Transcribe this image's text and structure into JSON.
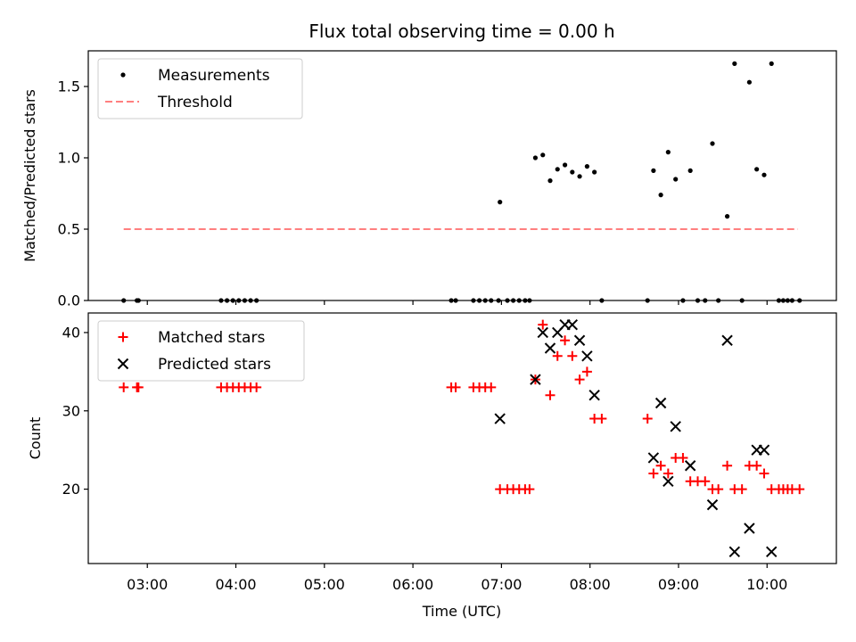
{
  "chart_data": {
    "type": "scatter",
    "title": "Flux total observing time = 0.00 h",
    "xlabel": "Time (UTC)",
    "x_ticks": [
      "03:00",
      "04:00",
      "05:00",
      "06:00",
      "07:00",
      "08:00",
      "09:00",
      "10:00"
    ],
    "x_tick_hours": [
      3,
      4,
      5,
      6,
      7,
      8,
      9,
      10
    ],
    "xlim": [
      2.333,
      10.783
    ],
    "panels": [
      {
        "ylabel": "Matched/Predicted stars",
        "ylim": [
          0,
          1.75
        ],
        "y_ticks": [
          0.0,
          0.5,
          1.0,
          1.5
        ],
        "y_tick_labels": [
          "0.0",
          "0.5",
          "1.0",
          "1.5"
        ],
        "legend": [
          "Measurements",
          "Threshold"
        ],
        "legend_position": "upper left",
        "threshold": {
          "name": "Threshold",
          "value": 0.5,
          "x_range": [
            2.733,
            10.35
          ],
          "color": "#ff7f7f"
        },
        "series": [
          {
            "name": "Measurements",
            "marker": "dot",
            "color": "#000000",
            "points": [
              [
                2.733,
                0
              ],
              [
                2.883,
                0
              ],
              [
                2.9,
                0
              ],
              [
                3.833,
                0
              ],
              [
                3.9,
                0
              ],
              [
                3.967,
                0
              ],
              [
                4.033,
                0
              ],
              [
                4.1,
                0
              ],
              [
                4.167,
                0
              ],
              [
                4.233,
                0
              ],
              [
                6.433,
                0
              ],
              [
                6.483,
                0
              ],
              [
                6.683,
                0
              ],
              [
                6.75,
                0
              ],
              [
                6.817,
                0
              ],
              [
                6.883,
                0
              ],
              [
                6.967,
                0
              ],
              [
                6.983,
                0.69
              ],
              [
                7.067,
                0
              ],
              [
                7.133,
                0
              ],
              [
                7.2,
                0
              ],
              [
                7.267,
                0
              ],
              [
                7.317,
                0
              ],
              [
                7.383,
                1.0
              ],
              [
                7.467,
                1.02
              ],
              [
                7.55,
                0.84
              ],
              [
                7.633,
                0.92
              ],
              [
                7.717,
                0.95
              ],
              [
                7.8,
                0.9
              ],
              [
                7.883,
                0.87
              ],
              [
                7.967,
                0.94
              ],
              [
                8.05,
                0.9
              ],
              [
                8.133,
                0
              ],
              [
                8.65,
                0
              ],
              [
                8.717,
                0.91
              ],
              [
                8.8,
                0.74
              ],
              [
                8.883,
                1.04
              ],
              [
                8.967,
                0.85
              ],
              [
                9.05,
                0
              ],
              [
                9.133,
                0.91
              ],
              [
                9.217,
                0
              ],
              [
                9.3,
                0
              ],
              [
                9.383,
                1.1
              ],
              [
                9.45,
                0
              ],
              [
                9.55,
                0.59
              ],
              [
                9.633,
                1.66
              ],
              [
                9.717,
                0
              ],
              [
                9.8,
                1.53
              ],
              [
                9.883,
                0.92
              ],
              [
                9.967,
                0.88
              ],
              [
                10.05,
                1.66
              ],
              [
                10.133,
                0
              ],
              [
                10.183,
                0
              ],
              [
                10.233,
                0
              ],
              [
                10.283,
                0
              ],
              [
                10.367,
                0
              ]
            ]
          }
        ]
      },
      {
        "ylabel": "Count",
        "ylim": [
          10.5,
          42.5
        ],
        "y_ticks": [
          20,
          30,
          40
        ],
        "y_tick_labels": [
          "20",
          "30",
          "40"
        ],
        "legend": [
          "Matched stars",
          "Predicted stars"
        ],
        "legend_position": "upper left",
        "series": [
          {
            "name": "Matched stars",
            "marker": "plus",
            "color": "#ff0000",
            "points": [
              [
                2.733,
                33
              ],
              [
                2.883,
                33
              ],
              [
                2.9,
                33
              ],
              [
                3.833,
                33
              ],
              [
                3.9,
                33
              ],
              [
                3.967,
                33
              ],
              [
                4.033,
                33
              ],
              [
                4.1,
                33
              ],
              [
                4.167,
                33
              ],
              [
                4.233,
                33
              ],
              [
                6.433,
                33
              ],
              [
                6.483,
                33
              ],
              [
                6.683,
                33
              ],
              [
                6.75,
                33
              ],
              [
                6.817,
                33
              ],
              [
                6.883,
                33
              ],
              [
                6.983,
                20
              ],
              [
                7.067,
                20
              ],
              [
                7.133,
                20
              ],
              [
                7.2,
                20
              ],
              [
                7.267,
                20
              ],
              [
                7.317,
                20
              ],
              [
                7.383,
                34
              ],
              [
                7.467,
                41
              ],
              [
                7.55,
                32
              ],
              [
                7.633,
                37
              ],
              [
                7.717,
                39
              ],
              [
                7.8,
                37
              ],
              [
                7.883,
                34
              ],
              [
                7.967,
                35
              ],
              [
                8.05,
                29
              ],
              [
                8.133,
                29
              ],
              [
                8.65,
                29
              ],
              [
                8.717,
                22
              ],
              [
                8.8,
                23
              ],
              [
                8.883,
                22
              ],
              [
                8.967,
                24
              ],
              [
                9.05,
                24
              ],
              [
                9.133,
                21
              ],
              [
                9.217,
                21
              ],
              [
                9.3,
                21
              ],
              [
                9.383,
                20
              ],
              [
                9.45,
                20
              ],
              [
                9.55,
                23
              ],
              [
                9.633,
                20
              ],
              [
                9.717,
                20
              ],
              [
                9.8,
                23
              ],
              [
                9.883,
                23
              ],
              [
                9.967,
                22
              ],
              [
                10.05,
                20
              ],
              [
                10.133,
                20
              ],
              [
                10.183,
                20
              ],
              [
                10.233,
                20
              ],
              [
                10.283,
                20
              ],
              [
                10.367,
                20
              ]
            ]
          },
          {
            "name": "Predicted stars",
            "marker": "x",
            "color": "#000000",
            "points": [
              [
                6.983,
                29
              ],
              [
                7.383,
                34
              ],
              [
                7.467,
                40
              ],
              [
                7.55,
                38
              ],
              [
                7.633,
                40
              ],
              [
                7.717,
                41
              ],
              [
                7.8,
                41
              ],
              [
                7.883,
                39
              ],
              [
                7.967,
                37
              ],
              [
                8.05,
                32
              ],
              [
                8.717,
                24
              ],
              [
                8.8,
                31
              ],
              [
                8.883,
                21
              ],
              [
                8.967,
                28
              ],
              [
                9.133,
                23
              ],
              [
                9.383,
                18
              ],
              [
                9.55,
                39
              ],
              [
                9.633,
                12
              ],
              [
                9.8,
                15
              ],
              [
                9.883,
                25
              ],
              [
                9.967,
                25
              ],
              [
                10.05,
                12
              ]
            ]
          }
        ]
      }
    ]
  }
}
